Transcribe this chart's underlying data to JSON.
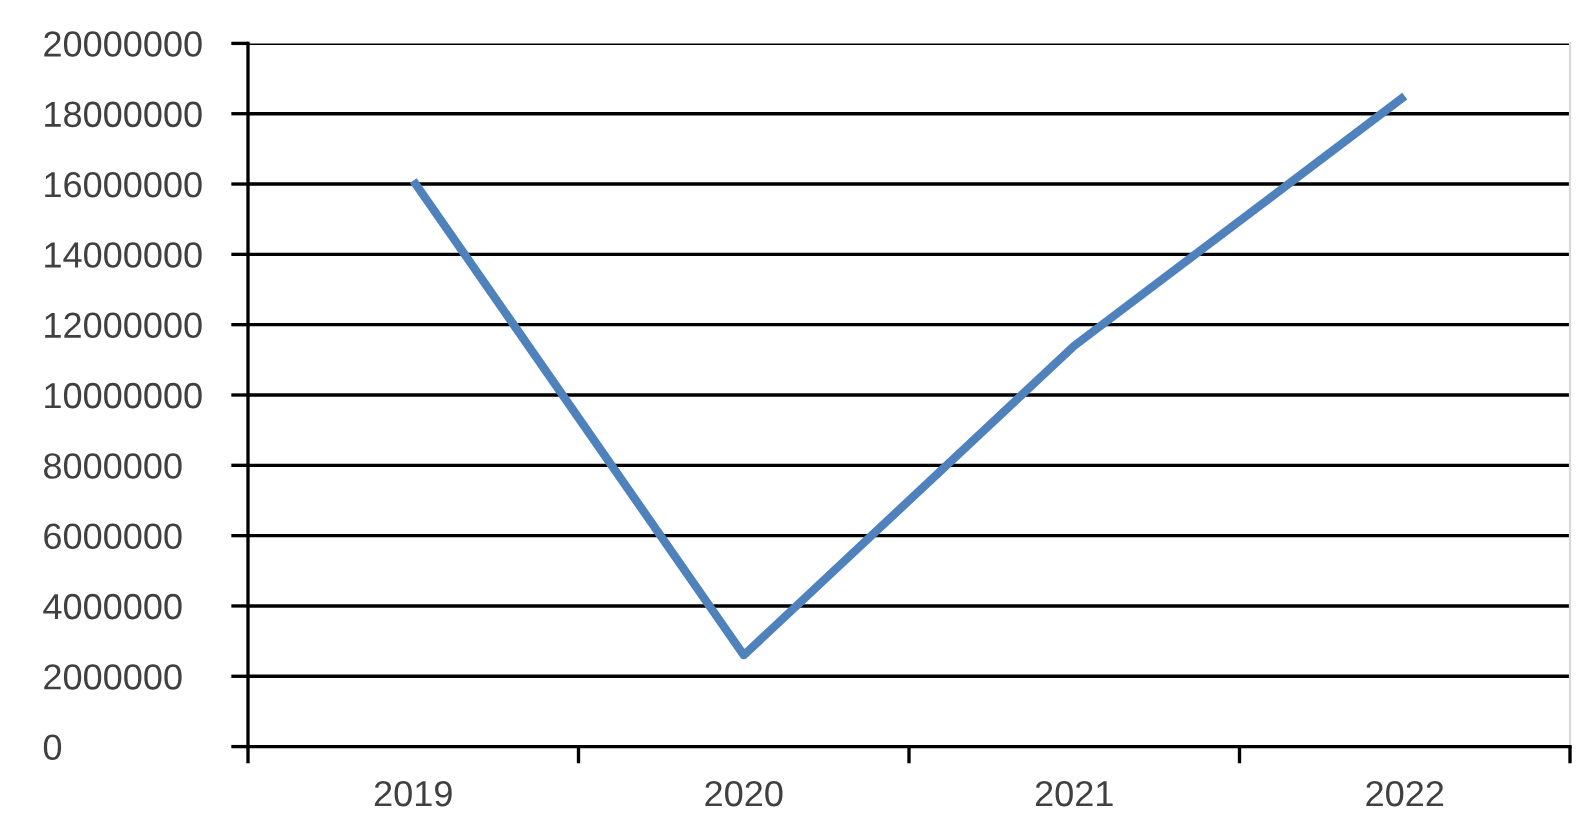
{
  "chart_data": {
    "type": "line",
    "categories": [
      "2019",
      "2020",
      "2021",
      "2022"
    ],
    "series": [
      {
        "color": "#4f81bd",
        "values": [
          16100000,
          2600000,
          11400000,
          18500000
        ]
      }
    ],
    "ylim": [
      0,
      20000000
    ],
    "yticks": [
      0,
      2000000,
      4000000,
      6000000,
      8000000,
      10000000,
      12000000,
      14000000,
      16000000,
      18000000,
      20000000
    ],
    "grid": "y",
    "marker": "none",
    "line_style": "solid"
  }
}
